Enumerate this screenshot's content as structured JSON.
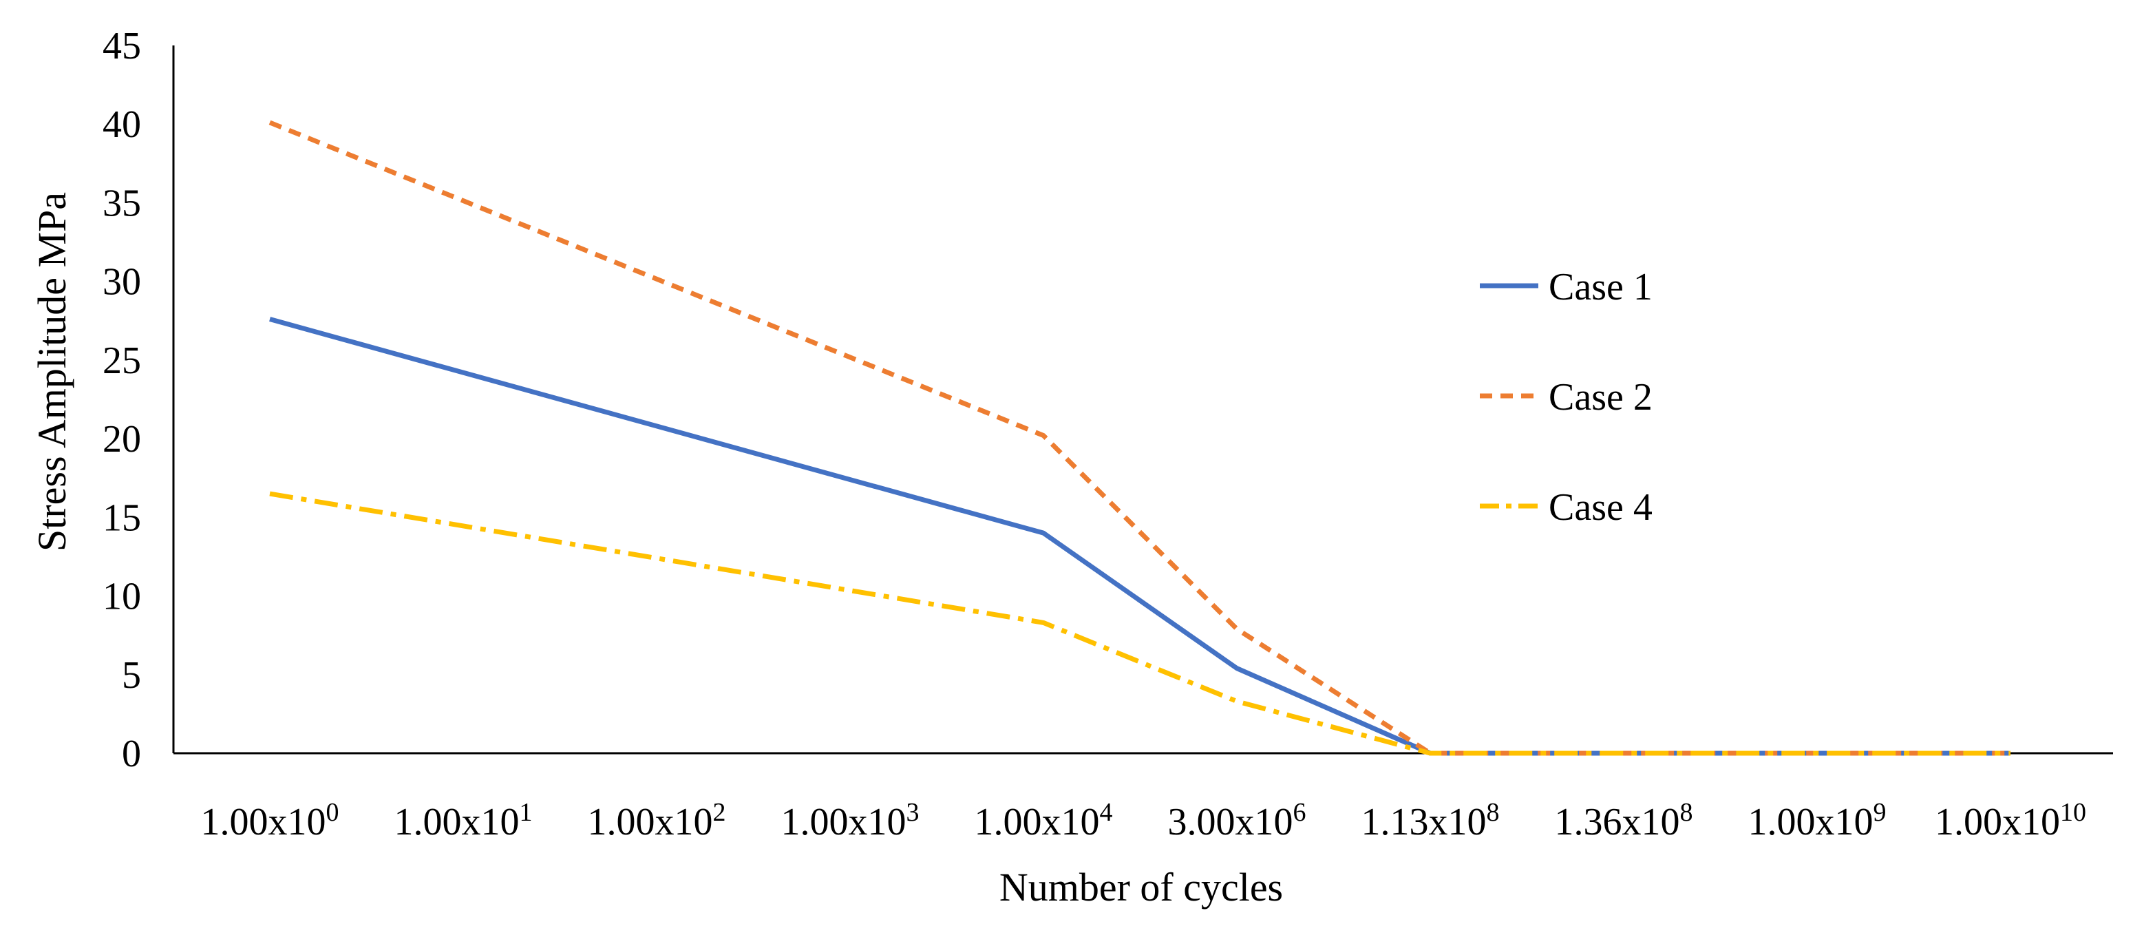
{
  "chart_data": {
    "type": "line",
    "title": "",
    "xlabel": "Number of cycles",
    "ylabel": "Stress Amplitude MPa",
    "ylim": [
      0,
      45
    ],
    "yticks": [
      0,
      5,
      10,
      15,
      20,
      25,
      30,
      35,
      40,
      45
    ],
    "categories": [
      {
        "base": "1.00x10",
        "exp": "0"
      },
      {
        "base": "1.00x10",
        "exp": "1"
      },
      {
        "base": "1.00x10",
        "exp": "2"
      },
      {
        "base": "1.00x10",
        "exp": "3"
      },
      {
        "base": "1.00x10",
        "exp": "4"
      },
      {
        "base": "3.00x10",
        "exp": "6"
      },
      {
        "base": "1.13x10",
        "exp": "8"
      },
      {
        "base": "1.36x10",
        "exp": "8"
      },
      {
        "base": "1.00x10",
        "exp": "9"
      },
      {
        "base": "1.00x10",
        "exp": "10"
      }
    ],
    "series": [
      {
        "name": "Case 1",
        "color": "#4472C4",
        "dash": "solid",
        "points": [
          {
            "i": 0,
            "y": 27.6
          },
          {
            "i": 4,
            "y": 14.0
          },
          {
            "i": 5,
            "y": 5.4
          },
          {
            "i": 6,
            "y": 0
          },
          {
            "i": 7,
            "y": 0
          },
          {
            "i": 8,
            "y": 0
          },
          {
            "i": 9,
            "y": 0
          }
        ]
      },
      {
        "name": "Case 2",
        "color": "#ED7D31",
        "dash": "dash",
        "points": [
          {
            "i": 0,
            "y": 40.1
          },
          {
            "i": 4,
            "y": 20.2
          },
          {
            "i": 5,
            "y": 7.9
          },
          {
            "i": 6,
            "y": 0
          },
          {
            "i": 7,
            "y": 0
          },
          {
            "i": 8,
            "y": 0
          },
          {
            "i": 9,
            "y": 0
          }
        ]
      },
      {
        "name": "Case 4",
        "color": "#FFC000",
        "dash": "dashdot",
        "points": [
          {
            "i": 0,
            "y": 16.5
          },
          {
            "i": 4,
            "y": 8.3
          },
          {
            "i": 5,
            "y": 3.3
          },
          {
            "i": 6,
            "y": 0
          },
          {
            "i": 7,
            "y": 0
          },
          {
            "i": 8,
            "y": 0
          },
          {
            "i": 9,
            "y": 0
          }
        ]
      }
    ],
    "legend": {
      "position": "right",
      "entries": [
        "Case 1",
        "Case 2",
        "Case 4"
      ]
    }
  }
}
